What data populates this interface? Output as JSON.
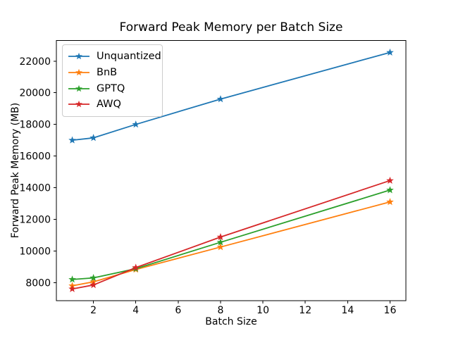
{
  "chart_data": {
    "type": "line",
    "title": "Forward Peak Memory per Batch Size",
    "xlabel": "Batch Size",
    "ylabel": "Forward Peak Memory (MB)",
    "x": [
      1,
      2,
      4,
      8,
      16
    ],
    "series": [
      {
        "name": "Unquantized",
        "color": "#1f77b4",
        "values": [
          17000,
          17150,
          18000,
          19600,
          22550
        ]
      },
      {
        "name": "BnB",
        "color": "#ff7f0e",
        "values": [
          7800,
          8050,
          8830,
          10250,
          13100
        ]
      },
      {
        "name": "GPTQ",
        "color": "#2ca02c",
        "values": [
          8200,
          8300,
          8880,
          10550,
          13850
        ]
      },
      {
        "name": "AWQ",
        "color": "#d62728",
        "values": [
          7600,
          7850,
          8950,
          10880,
          14450
        ]
      }
    ],
    "marker": "star",
    "xticks": [
      2,
      4,
      6,
      8,
      10,
      12,
      14,
      16
    ],
    "yticks": [
      8000,
      10000,
      12000,
      14000,
      16000,
      18000,
      20000,
      22000
    ],
    "xlim": [
      0.25,
      16.75
    ],
    "ylim": [
      6850,
      23300
    ],
    "grid": false,
    "legend_position": "upper left",
    "axis_color": "#000000",
    "background": "#ffffff"
  }
}
